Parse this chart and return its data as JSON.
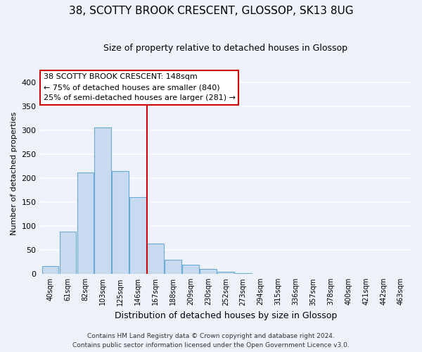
{
  "title": "38, SCOTTY BROOK CRESCENT, GLOSSOP, SK13 8UG",
  "subtitle": "Size of property relative to detached houses in Glossop",
  "xlabel": "Distribution of detached houses by size in Glossop",
  "ylabel": "Number of detached properties",
  "bar_labels": [
    "40sqm",
    "61sqm",
    "82sqm",
    "103sqm",
    "125sqm",
    "146sqm",
    "167sqm",
    "188sqm",
    "209sqm",
    "230sqm",
    "252sqm",
    "273sqm",
    "294sqm",
    "315sqm",
    "336sqm",
    "357sqm",
    "378sqm",
    "400sqm",
    "421sqm",
    "442sqm",
    "463sqm"
  ],
  "bar_values": [
    17,
    89,
    211,
    305,
    215,
    160,
    64,
    30,
    20,
    10,
    5,
    2,
    1,
    1,
    0,
    0,
    1,
    0,
    0,
    0,
    1
  ],
  "bar_color": "#c8daf0",
  "bar_edge_color": "#6aaad4",
  "vline_x": 5.5,
  "vline_color": "#cc0000",
  "ylim": [
    0,
    420
  ],
  "yticks": [
    0,
    50,
    100,
    150,
    200,
    250,
    300,
    350,
    400
  ],
  "annotation_title": "38 SCOTTY BROOK CRESCENT: 148sqm",
  "annotation_line1": "← 75% of detached houses are smaller (840)",
  "annotation_line2": "25% of semi-detached houses are larger (281) →",
  "annotation_box_color": "white",
  "annotation_box_edge": "#cc0000",
  "footer_line1": "Contains HM Land Registry data © Crown copyright and database right 2024.",
  "footer_line2": "Contains public sector information licensed under the Open Government Licence v3.0.",
  "bg_color": "#eef2fb",
  "grid_color": "white"
}
